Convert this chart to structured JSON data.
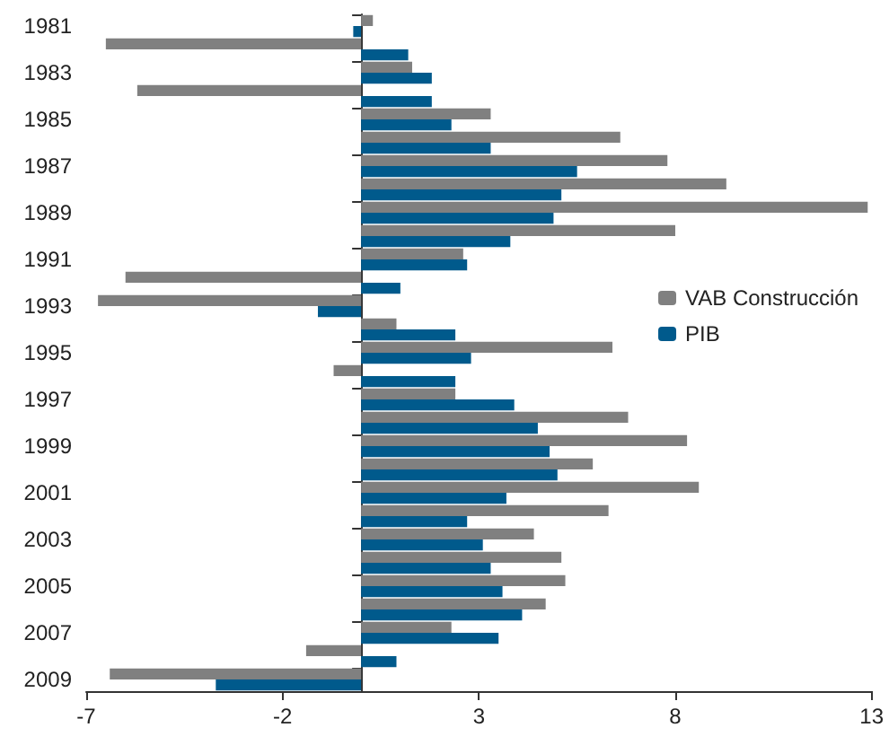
{
  "chart_data": {
    "type": "bar",
    "orientation": "horizontal",
    "categories": [
      "1981",
      null,
      "1983",
      null,
      "1985",
      null,
      "1987",
      null,
      "1989",
      null,
      "1991",
      null,
      "1993",
      null,
      "1995",
      null,
      "1997",
      null,
      "1999",
      null,
      "2001",
      null,
      "2003",
      null,
      "2005",
      null,
      "2007",
      null,
      "2009"
    ],
    "series": [
      {
        "name": "VAB Construcción",
        "color": "#808080",
        "values": [
          0.3,
          -6.5,
          1.3,
          -5.7,
          3.3,
          6.6,
          7.8,
          9.3,
          12.9,
          8.0,
          2.6,
          -6.0,
          -6.7,
          0.9,
          6.4,
          -0.7,
          2.4,
          6.8,
          8.3,
          5.9,
          8.6,
          6.3,
          4.4,
          5.1,
          5.2,
          4.7,
          2.3,
          -1.4,
          -6.4
        ]
      },
      {
        "name": "PIB",
        "color": "#005a8c",
        "values": [
          -0.2,
          1.2,
          1.8,
          1.8,
          2.3,
          3.3,
          5.5,
          5.1,
          4.9,
          3.8,
          2.7,
          1.0,
          -1.1,
          2.4,
          2.8,
          2.4,
          3.9,
          4.5,
          4.8,
          5.0,
          3.7,
          2.7,
          3.1,
          3.3,
          3.6,
          4.1,
          3.5,
          0.9,
          -3.7
        ]
      }
    ],
    "xlim": [
      -7,
      13
    ],
    "xticks": [
      -7,
      -2,
      3,
      8,
      13
    ],
    "grid": false,
    "legend": "right"
  }
}
